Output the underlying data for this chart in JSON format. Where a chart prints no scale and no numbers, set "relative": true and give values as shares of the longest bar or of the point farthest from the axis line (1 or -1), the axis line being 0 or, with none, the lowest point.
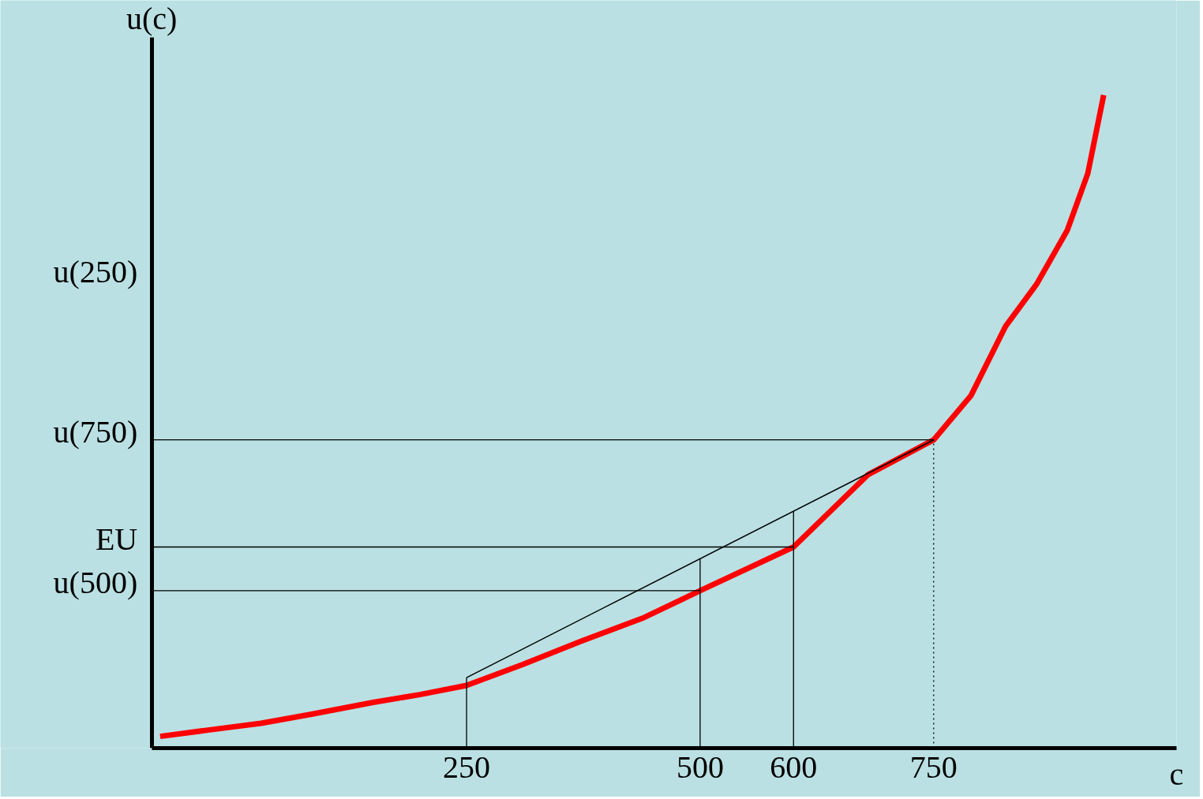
{
  "chart_data": {
    "type": "line",
    "relative": true,
    "xlabel": "c",
    "ylabel": "u(c)",
    "xlim": [
      -87,
      1010
    ],
    "xticks": [
      250,
      500,
      600,
      750
    ],
    "series": [
      {
        "color": "#ff0000",
        "x": [
          -78,
          -30,
          30,
          84,
          150,
          200,
          250,
          310,
          373,
          440,
          500,
          600,
          680,
          750,
          790,
          827,
          860,
          893,
          915,
          932
        ],
        "values": [
          0.018,
          0.027,
          0.038,
          0.052,
          0.07,
          0.082,
          0.096,
          0.128,
          0.164,
          0.2,
          0.241,
          0.308,
          0.419,
          0.472,
          0.54,
          0.646,
          0.71,
          0.793,
          0.88,
          1.0
        ]
      },
      {
        "color": "#000000",
        "x": [
          250,
          750
        ],
        "values": [
          0.108,
          0.472
        ]
      }
    ],
    "ref_lines": [
      {
        "axis": "y",
        "value": 0.472,
        "label": "u(750)",
        "color": "#000000",
        "line_style": "solid"
      },
      {
        "axis": "y",
        "value": 0.308,
        "label": "EU",
        "color": "#000000",
        "line_style": "solid"
      },
      {
        "axis": "y",
        "value": 0.241,
        "label": "u(500)",
        "color": "#000000",
        "line_style": "solid"
      },
      {
        "axis": "x",
        "value": 250,
        "color": "#000000",
        "line_style": "solid"
      },
      {
        "axis": "x",
        "value": 500,
        "color": "#000000",
        "line_style": "solid"
      },
      {
        "axis": "x",
        "value": 600,
        "color": "#000000",
        "line_style": "solid"
      },
      {
        "axis": "x",
        "value": 750,
        "color": "#000000",
        "line_style": "dotted"
      }
    ],
    "annotations": [
      "u(250)"
    ],
    "grid": false,
    "marker": "none",
    "line_style": "solid"
  }
}
